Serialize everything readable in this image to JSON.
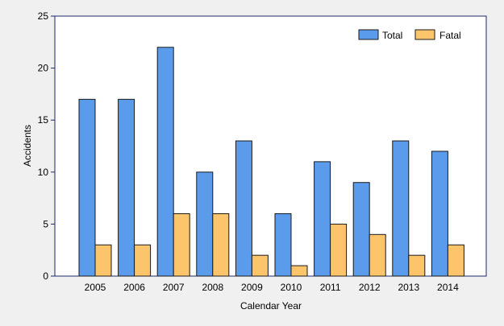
{
  "chart_data": {
    "type": "bar",
    "title": "",
    "xlabel": "Calendar Year",
    "ylabel": "Accidents",
    "categories": [
      "2005",
      "2006",
      "2007",
      "2008",
      "2009",
      "2010",
      "2011",
      "2012",
      "2013",
      "2014"
    ],
    "series": [
      {
        "name": "Total",
        "color": "#5b9bec",
        "values": [
          17,
          17,
          22,
          10,
          13,
          6,
          11,
          9,
          13,
          12
        ]
      },
      {
        "name": "Fatal",
        "color": "#fcc46b",
        "values": [
          3,
          3,
          6,
          6,
          2,
          1,
          5,
          4,
          2,
          3
        ]
      }
    ],
    "ylim": [
      0,
      25
    ],
    "yticks": [
      0,
      5,
      10,
      15,
      20,
      25
    ],
    "grid": false,
    "legend_position": "top-right"
  },
  "colors": {
    "background": "#f0f0f0",
    "plot_area": "#ffffff",
    "plot_border": "#1a2a6c",
    "bar_stroke": "#1a1a1a"
  }
}
